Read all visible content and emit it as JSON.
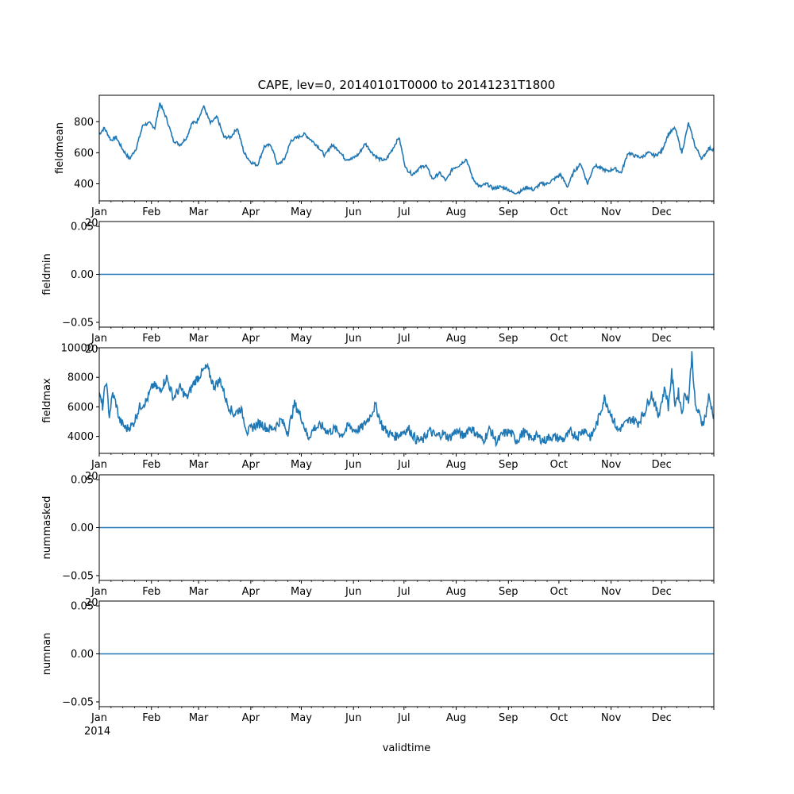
{
  "chart_data": {
    "type": "line",
    "title": "CAPE, lev=0, 20140101T0000 to 20141231T1800",
    "xlabel": "validtime",
    "x_tick_labels": [
      "Jan",
      "Feb",
      "Mar",
      "Apr",
      "May",
      "Jun",
      "Jul",
      "Aug",
      "Sep",
      "Oct",
      "Nov",
      "Dec"
    ],
    "x_year_label": "2014",
    "x_offset_fragment": "20",
    "xlim_days": [
      0,
      365
    ],
    "month_start_days": [
      0,
      31,
      59,
      90,
      120,
      151,
      181,
      212,
      243,
      273,
      304,
      334
    ],
    "line_color": "#1f77b4",
    "panels": [
      {
        "ylabel": "fieldmean",
        "ylim": [
          290,
          970
        ],
        "y_ticks": [
          400,
          600,
          800
        ],
        "y_tick_labels": [
          "400",
          "600",
          "800"
        ],
        "approx_series": {
          "day": [
            0,
            3,
            7,
            10,
            14,
            18,
            22,
            26,
            30,
            33,
            36,
            40,
            44,
            48,
            52,
            55,
            58,
            62,
            66,
            70,
            74,
            78,
            82,
            86,
            90,
            94,
            98,
            102,
            106,
            110,
            114,
            118,
            122,
            126,
            130,
            134,
            138,
            142,
            146,
            150,
            154,
            158,
            162,
            166,
            170,
            174,
            178,
            182,
            186,
            190,
            194,
            198,
            202,
            206,
            210,
            214,
            218,
            222,
            226,
            230,
            234,
            238,
            242,
            246,
            250,
            254,
            258,
            262,
            266,
            270,
            274,
            278,
            282,
            286,
            290,
            294,
            298,
            302,
            306,
            310,
            314,
            318,
            322,
            326,
            330,
            334,
            338,
            342,
            346,
            350,
            354,
            358,
            362,
            365
          ],
          "value": [
            720,
            760,
            680,
            700,
            620,
            560,
            630,
            780,
            790,
            760,
            920,
            820,
            680,
            650,
            700,
            790,
            800,
            900,
            790,
            830,
            700,
            700,
            760,
            600,
            540,
            520,
            640,
            650,
            520,
            560,
            680,
            700,
            720,
            680,
            640,
            580,
            650,
            620,
            560,
            560,
            590,
            660,
            600,
            560,
            550,
            620,
            700,
            500,
            460,
            500,
            520,
            430,
            470,
            420,
            500,
            520,
            560,
            430,
            380,
            400,
            370,
            380,
            370,
            340,
            350,
            380,
            360,
            400,
            400,
            430,
            460,
            380,
            480,
            530,
            400,
            520,
            500,
            480,
            500,
            470,
            600,
            580,
            570,
            600,
            580,
            610,
            720,
            760,
            600,
            790,
            640,
            560,
            630,
            620
          ]
        }
      },
      {
        "ylabel": "fieldmin",
        "ylim": [
          -0.055,
          0.055
        ],
        "y_ticks": [
          -0.05,
          0.0,
          0.05
        ],
        "y_tick_labels": [
          "−0.05",
          "0.00",
          "0.05"
        ],
        "approx_series": {
          "day": [
            0,
            365
          ],
          "value": [
            0,
            0
          ]
        }
      },
      {
        "ylabel": "fieldmax",
        "ylim": [
          2850,
          10000
        ],
        "y_ticks": [
          4000,
          6000,
          8000,
          10000
        ],
        "y_tick_labels": [
          "4000",
          "6000",
          "8000",
          "10000"
        ],
        "approx_series": {
          "day": [
            0,
            2,
            4,
            6,
            8,
            10,
            12,
            16,
            20,
            24,
            28,
            32,
            36,
            40,
            44,
            48,
            52,
            56,
            60,
            64,
            68,
            72,
            76,
            80,
            84,
            88,
            92,
            96,
            100,
            104,
            108,
            112,
            116,
            120,
            124,
            128,
            132,
            136,
            140,
            144,
            148,
            152,
            156,
            160,
            164,
            168,
            172,
            176,
            180,
            184,
            188,
            192,
            196,
            200,
            204,
            208,
            212,
            216,
            220,
            224,
            228,
            232,
            236,
            240,
            244,
            248,
            252,
            256,
            260,
            264,
            268,
            272,
            276,
            280,
            284,
            288,
            292,
            296,
            300,
            304,
            308,
            312,
            316,
            320,
            324,
            328,
            332,
            336,
            338,
            340,
            342,
            344,
            346,
            348,
            350,
            352,
            354,
            356,
            358,
            360,
            362,
            365
          ],
          "value": [
            6800,
            6000,
            7800,
            5400,
            6900,
            6200,
            5100,
            4500,
            4800,
            6000,
            6400,
            7500,
            7100,
            8000,
            6600,
            7300,
            6600,
            7600,
            8200,
            8700,
            7400,
            7800,
            6200,
            5500,
            5900,
            4300,
            4700,
            4900,
            4500,
            4600,
            5100,
            4300,
            6200,
            5300,
            3900,
            4600,
            4700,
            4300,
            4500,
            4100,
            4700,
            4400,
            4600,
            5200,
            6100,
            4700,
            4200,
            4000,
            4300,
            4500,
            3800,
            3700,
            4400,
            4000,
            4200,
            3900,
            4400,
            4000,
            4600,
            4200,
            3700,
            4500,
            3600,
            4200,
            4300,
            3700,
            4300,
            3900,
            4000,
            3700,
            4000,
            3900,
            3800,
            4300,
            4000,
            4500,
            3900,
            5000,
            6600,
            5500,
            4400,
            4800,
            5200,
            4900,
            5700,
            6900,
            5400,
            7300,
            6000,
            8300,
            6200,
            7000,
            5600,
            7000,
            6400,
            9600,
            6000,
            5600,
            4900,
            5300,
            6700,
            5400
          ]
        }
      },
      {
        "ylabel": "nummasked",
        "ylim": [
          -0.055,
          0.055
        ],
        "y_ticks": [
          -0.05,
          0.0,
          0.05
        ],
        "y_tick_labels": [
          "−0.05",
          "0.00",
          "0.05"
        ],
        "approx_series": {
          "day": [
            0,
            365
          ],
          "value": [
            0,
            0
          ]
        }
      },
      {
        "ylabel": "numnan",
        "ylim": [
          -0.055,
          0.055
        ],
        "y_ticks": [
          -0.05,
          0.0,
          0.05
        ],
        "y_tick_labels": [
          "−0.05",
          "0.00",
          "0.05"
        ],
        "approx_series": {
          "day": [
            0,
            365
          ],
          "value": [
            0,
            0
          ]
        }
      }
    ]
  }
}
